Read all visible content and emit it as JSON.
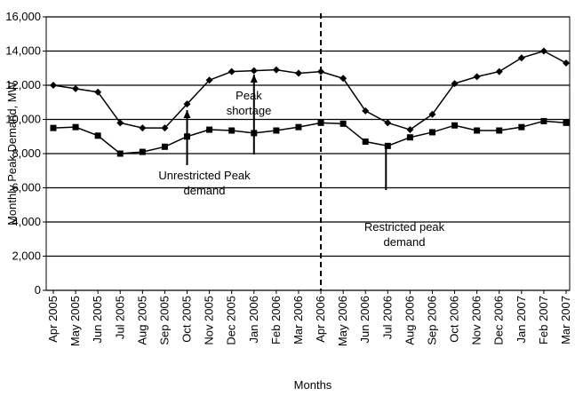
{
  "chart_data": {
    "type": "line",
    "y_label": "Monthly Peak Demand, MW",
    "x_label": "Months",
    "categories": [
      "Apr 2005",
      "May 2005",
      "Jun 2005",
      "Jul 2005",
      "Aug 2005",
      "Sep 2005",
      "Oct 2005",
      "Nov 2005",
      "Dec 2005",
      "Jan 2006",
      "Feb 2006",
      "Mar 2006",
      "Apr 2006",
      "May 2006",
      "Jun 2006",
      "Jul 2006",
      "Aug 2006",
      "Sep 2006",
      "Oct 2006",
      "Nov 2006",
      "Dec 2006",
      "Jan 2007",
      "Feb 2007",
      "Mar 2007"
    ],
    "series": [
      {
        "color": "#000000",
        "marker": "diamond",
        "values": [
          12000,
          11800,
          11600,
          9800,
          9500,
          9500,
          10900,
          12300,
          12800,
          12850,
          12900,
          12700,
          12800,
          12400,
          10500,
          9800,
          9400,
          10300,
          12100,
          12500,
          12800,
          13600,
          14000,
          13300
        ]
      },
      {
        "color": "#000000",
        "marker": "square",
        "values": [
          9500,
          9550,
          9050,
          8000,
          8100,
          8400,
          9000,
          9400,
          9350,
          9200,
          9350,
          9550,
          9800,
          9750,
          8700,
          8450,
          8950,
          9250,
          9650,
          9350,
          9350,
          9550,
          9900,
          9800
        ]
      }
    ],
    "ylim": [
      0,
      16000
    ],
    "yticks": [
      0,
      {
        "value": 2000,
        "label": "2,000"
      },
      {
        "value": 4000,
        "label": "4,000"
      },
      {
        "value": 6000,
        "label": "6,000"
      },
      {
        "value": 8000,
        "label": "8,000"
      },
      {
        "value": 10000,
        "label": "10,000"
      },
      {
        "value": 12000,
        "label": "12,000"
      },
      {
        "value": 14000,
        "label": "14,000"
      },
      {
        "value": 16000,
        "label": "16,000"
      }
    ],
    "grid": true,
    "reference_line": {
      "category": "Apr 2006",
      "style": "dashed"
    },
    "annotations": [
      {
        "lines": [
          "Peak",
          "shortage"
        ]
      },
      {
        "lines": [
          "Unrestricted Peak",
          "demand"
        ]
      },
      {
        "lines": [
          "Restricted peak",
          "demand"
        ]
      }
    ]
  }
}
